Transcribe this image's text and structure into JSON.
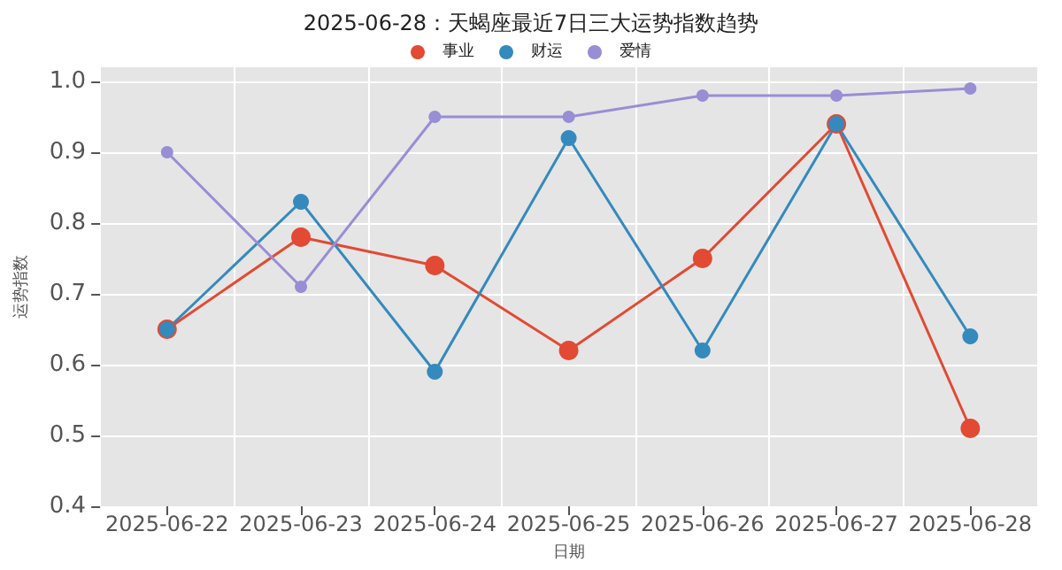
{
  "chart_data": {
    "type": "line",
    "title": "2025-06-28：天蝎座最近7日三大运势指数趋势",
    "xlabel": "日期",
    "ylabel": "运势指数",
    "categories": [
      "2025-06-22",
      "2025-06-23",
      "2025-06-24",
      "2025-06-25",
      "2025-06-26",
      "2025-06-27",
      "2025-06-28"
    ],
    "series": [
      {
        "name": "事业",
        "color": "#e24a33",
        "values": [
          0.65,
          0.78,
          0.74,
          0.62,
          0.75,
          0.94,
          0.51
        ]
      },
      {
        "name": "财运",
        "color": "#348abd",
        "values": [
          0.65,
          0.83,
          0.59,
          0.92,
          0.62,
          0.94,
          0.64
        ]
      },
      {
        "name": "爱情",
        "color": "#988ed5",
        "values": [
          0.9,
          0.71,
          0.95,
          0.95,
          0.98,
          0.98,
          0.99
        ]
      }
    ],
    "ylim": [
      0.4,
      1.02
    ],
    "yticks": [
      {
        "value": 0.4,
        "label": "0.4"
      },
      {
        "value": 0.5,
        "label": "0.5"
      },
      {
        "value": 0.6,
        "label": "0.6"
      },
      {
        "value": 0.7,
        "label": "0.7"
      },
      {
        "value": 0.8,
        "label": "0.8"
      },
      {
        "value": 0.9,
        "label": "0.9"
      },
      {
        "value": 1.0,
        "label": "1.0"
      }
    ],
    "grid": true,
    "legend": "top",
    "marker": "circle",
    "line_style": "solid"
  }
}
